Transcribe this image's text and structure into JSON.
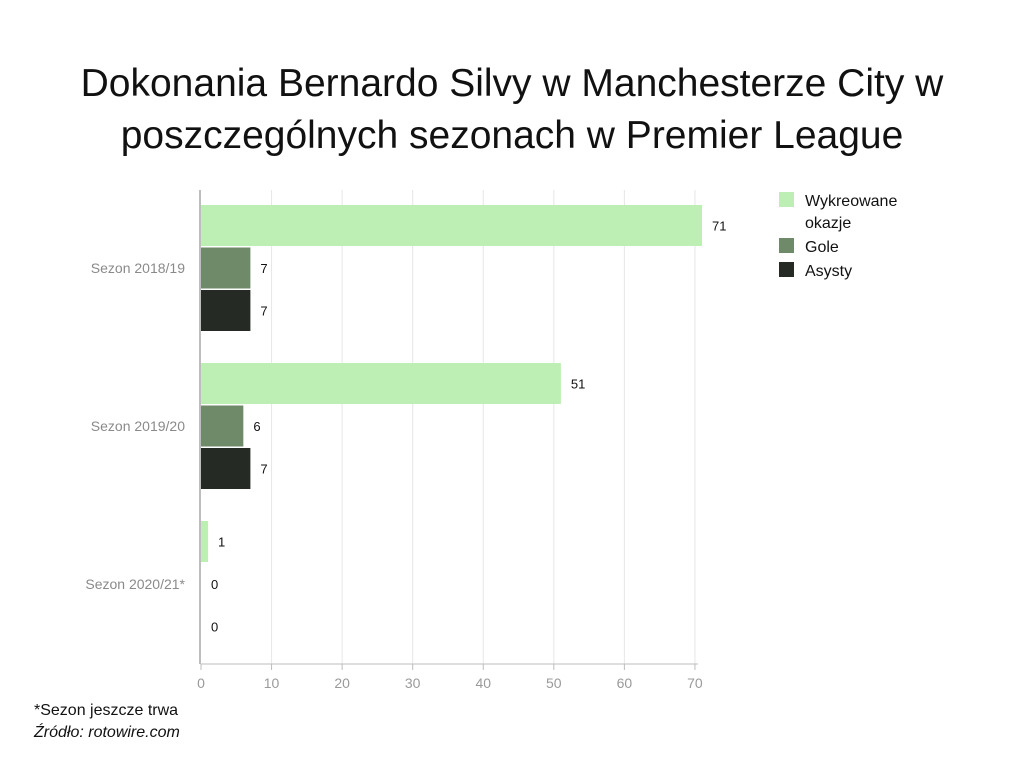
{
  "title": {
    "line1": "Dokonania Bernardo Silvy w Manchesterze City w",
    "line2": "poszczególnych sezonach w Premier League"
  },
  "chart_data": {
    "type": "bar",
    "orientation": "horizontal",
    "categories": [
      "Sezon 2018/19",
      "Sezon 2019/20",
      "Sezon 2020/21*"
    ],
    "series": [
      {
        "name": "Wykreowane okazje",
        "legend_lines": [
          "Wykreowane",
          "okazje"
        ],
        "values": [
          71,
          51,
          1
        ],
        "color": "#bdeeb3"
      },
      {
        "name": "Gole",
        "legend_lines": [
          "Gole"
        ],
        "values": [
          7,
          6,
          0
        ],
        "color": "#6f8a68"
      },
      {
        "name": "Asysty",
        "legend_lines": [
          "Asysty"
        ],
        "values": [
          7,
          7,
          0
        ],
        "color": "#262a24"
      }
    ],
    "x_ticks": [
      0,
      10,
      20,
      30,
      40,
      50,
      60,
      70
    ],
    "xlim": [
      0,
      71
    ],
    "xlabel": "",
    "ylabel": "",
    "grid": true,
    "legend_position": "right",
    "data_labels": true
  },
  "footnote": {
    "note": "*Sezon jeszcze trwa",
    "source": "Źródło: rotowire.com"
  }
}
